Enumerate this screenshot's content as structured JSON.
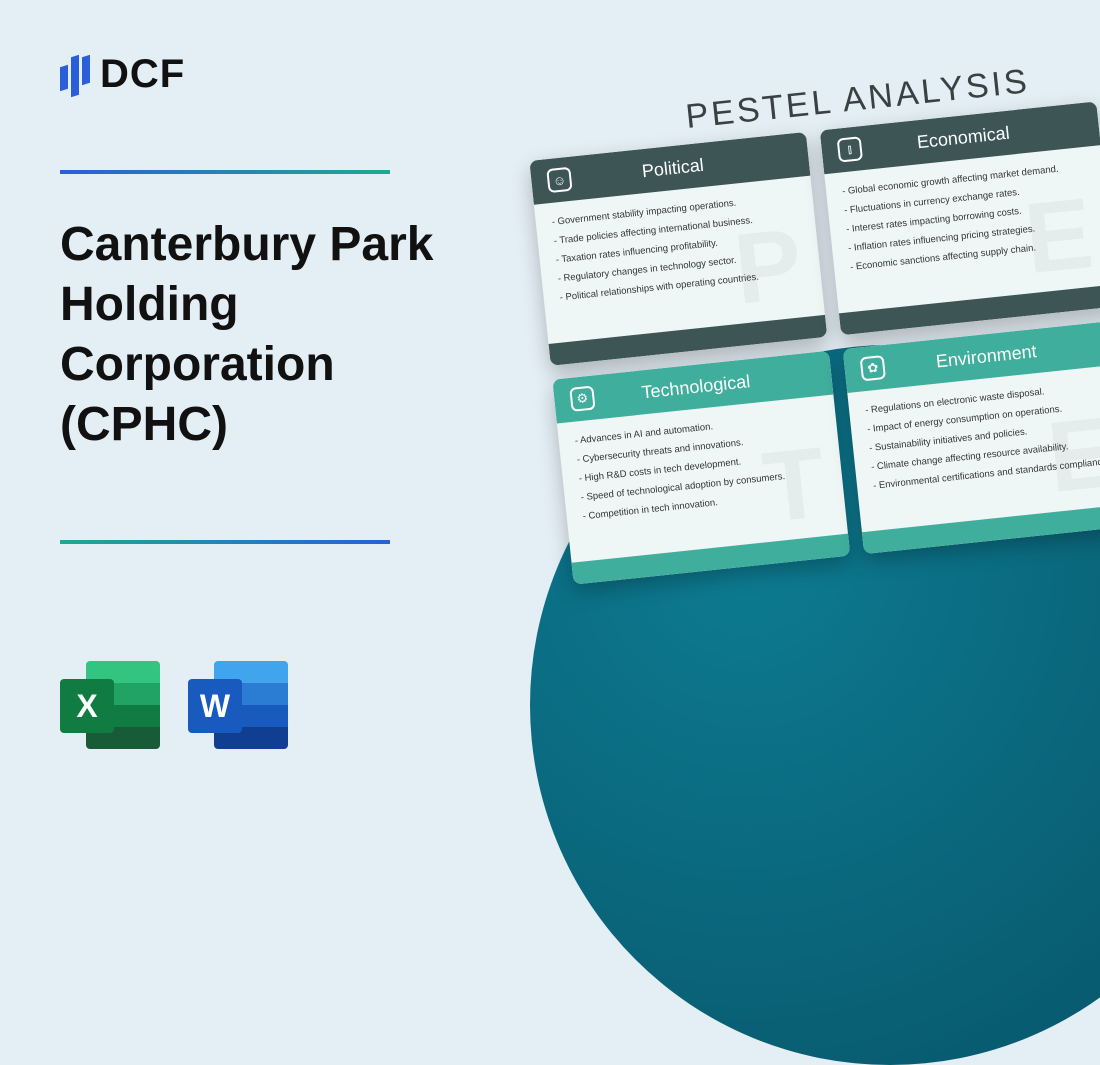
{
  "brand": "DCF",
  "title": "Canterbury Park Holding Corporation (CPHC)",
  "pestel_heading": "PESTEL ANALYSIS",
  "file_icons": {
    "excel": "X",
    "word": "W"
  },
  "colors": {
    "background": "#e4eef5",
    "gradient_blue": "#2b5fd9",
    "gradient_teal": "#1fa98f",
    "circle_outer": "#075267",
    "circle_inner": "#0d7b91",
    "dark_header": "#3d5555",
    "teal_header": "#3fae9c"
  },
  "cards": [
    {
      "variant": "dark",
      "letter": "P",
      "title": "Political",
      "icon": "☺",
      "items": [
        "Government stability impacting operations.",
        "Trade policies affecting international business.",
        "Taxation rates influencing profitability.",
        "Regulatory changes in technology sector.",
        "Political relationships with operating countries."
      ]
    },
    {
      "variant": "dark",
      "letter": "E",
      "title": "Economical",
      "icon": "⫾",
      "items": [
        "Global economic growth affecting market demand.",
        "Fluctuations in currency exchange rates.",
        "Interest rates impacting borrowing costs.",
        "Inflation rates influencing pricing strategies.",
        "Economic sanctions affecting supply chain."
      ]
    },
    {
      "variant": "teal",
      "letter": "T",
      "title": "Technological",
      "icon": "⚙",
      "items": [
        "Advances in AI and automation.",
        "Cybersecurity threats and innovations.",
        "High R&D costs in tech development.",
        "Speed of technological adoption by consumers.",
        "Competition in tech innovation."
      ]
    },
    {
      "variant": "teal",
      "letter": "E",
      "title": "Environment",
      "icon": "✿",
      "items": [
        "Regulations on electronic waste disposal.",
        "Impact of energy consumption on operations.",
        "Sustainability initiatives and policies.",
        "Climate change affecting resource availability.",
        "Environmental certifications and standards compliance."
      ]
    }
  ]
}
